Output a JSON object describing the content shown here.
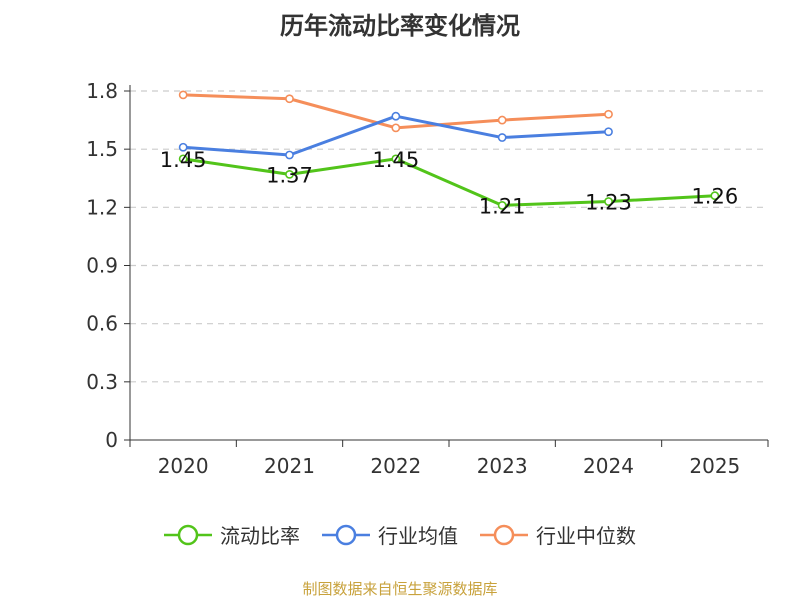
{
  "chart_data": {
    "type": "line",
    "title": "历年流动比率变化情况",
    "categories": [
      "2020",
      "2021",
      "2022",
      "2023",
      "2024",
      "2025"
    ],
    "yticks": [
      "0",
      "0.3",
      "0.6",
      "0.9",
      "1.2",
      "1.5",
      "1.8"
    ],
    "ylim": [
      0,
      1.8
    ],
    "grid": true,
    "legend_position": "bottom",
    "series": [
      {
        "name": "流动比率",
        "color": "#52c41a",
        "values": [
          1.45,
          1.37,
          1.45,
          1.21,
          1.23,
          1.26
        ],
        "data_labels": [
          "1.45",
          "1.37",
          "1.45",
          "1.21",
          "1.23",
          "1.26"
        ]
      },
      {
        "name": "行业均值",
        "color": "#4a7fe0",
        "values": [
          1.51,
          1.47,
          1.67,
          1.56,
          1.59,
          null
        ]
      },
      {
        "name": "行业中位数",
        "color": "#f58e5a",
        "values": [
          1.78,
          1.76,
          1.61,
          1.65,
          1.68,
          null
        ]
      }
    ]
  },
  "source_text": "制图数据来自恒生聚源数据库"
}
